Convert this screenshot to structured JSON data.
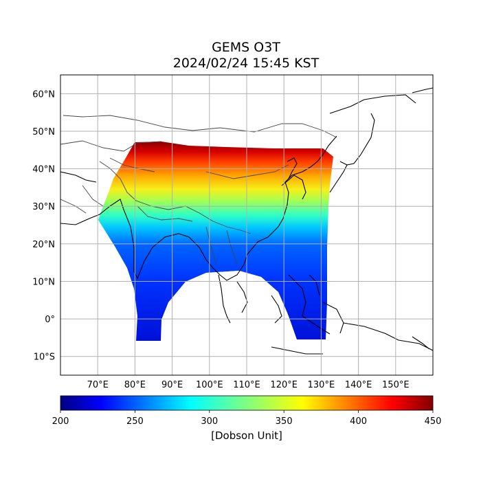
{
  "figure": {
    "title_line1": "GEMS O3T",
    "title_line2": "2024/02/24 15:45 KST"
  },
  "map": {
    "extent_lon": [
      60,
      160
    ],
    "extent_lat": [
      -15,
      65
    ],
    "gridlines": true,
    "lon_ticks": [
      {
        "value": 70,
        "label": "70°E"
      },
      {
        "value": 80,
        "label": "80°E"
      },
      {
        "value": 90,
        "label": "90°E"
      },
      {
        "value": 100,
        "label": "100°E"
      },
      {
        "value": 110,
        "label": "110°E"
      },
      {
        "value": 120,
        "label": "120°E"
      },
      {
        "value": 130,
        "label": "130°E"
      },
      {
        "value": 140,
        "label": "140°E"
      },
      {
        "value": 150,
        "label": "150°E"
      }
    ],
    "lat_ticks": [
      {
        "value": 60,
        "label": "60°N"
      },
      {
        "value": 50,
        "label": "50°N"
      },
      {
        "value": 40,
        "label": "40°N"
      },
      {
        "value": 30,
        "label": "30°N"
      },
      {
        "value": 20,
        "label": "20°N"
      },
      {
        "value": 10,
        "label": "10°N"
      },
      {
        "value": 0,
        "label": "0°"
      },
      {
        "value": -10,
        "label": "10°S"
      }
    ]
  },
  "colorbar": {
    "label": "[Dobson Unit]",
    "colormap": "jet",
    "min": 200,
    "max": 450,
    "ticks": [
      {
        "value": 200,
        "label": "200"
      },
      {
        "value": 250,
        "label": "250"
      },
      {
        "value": 300,
        "label": "300"
      },
      {
        "value": 350,
        "label": "350"
      },
      {
        "value": 400,
        "label": "400"
      },
      {
        "value": 450,
        "label": "450"
      }
    ]
  },
  "colors": {
    "grid": "#b0b0b0",
    "coast": "#000000",
    "border": "#555555"
  }
}
